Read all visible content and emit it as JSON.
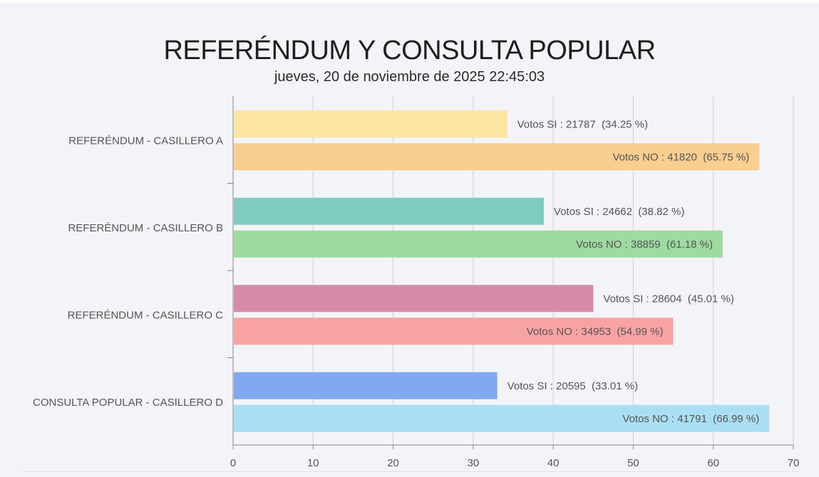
{
  "title": "REFERÉNDUM Y CONSULTA POPULAR",
  "subtitle": "jueves, 20 de noviembre de 2025 22:45:03",
  "chart_data": {
    "type": "bar",
    "orientation": "horizontal",
    "title": "REFERÉNDUM Y CONSULTA POPULAR",
    "subtitle": "jueves, 20 de noviembre de 2025 22:45:03",
    "xlim": [
      0,
      70
    ],
    "xticks": [
      0,
      10,
      20,
      30,
      40,
      50,
      60,
      70
    ],
    "grid": true,
    "categories": [
      "REFERÉNDUM - CASILLERO A",
      "REFERÉNDUM - CASILLERO B",
      "REFERÉNDUM - CASILLERO C",
      "CONSULTA POPULAR - CASILLERO D"
    ],
    "bars": [
      {
        "category": 0,
        "kind": "si",
        "value": 34.25,
        "label": "Votos SI : 21787  (34.25 %)",
        "color": "#fbe6a0"
      },
      {
        "category": 0,
        "kind": "no",
        "value": 65.75,
        "label": "Votos NO : 41820  (65.75 %)",
        "color": "#f9ce90"
      },
      {
        "category": 1,
        "kind": "si",
        "value": 38.82,
        "label": "Votos SI : 24662  (38.82 %)",
        "color": "#7ecbc1"
      },
      {
        "category": 1,
        "kind": "no",
        "value": 61.18,
        "label": "Votos NO : 38859  (61.18 %)",
        "color": "#9ddba1"
      },
      {
        "category": 2,
        "kind": "si",
        "value": 45.01,
        "label": "Votos SI : 28604  (45.01 %)",
        "color": "#d78ba8"
      },
      {
        "category": 2,
        "kind": "no",
        "value": 54.99,
        "label": "Votos NO : 34953  (54.99 %)",
        "color": "#f8a3a3"
      },
      {
        "category": 3,
        "kind": "si",
        "value": 33.01,
        "label": "Votos SI : 20595  (33.01 %)",
        "color": "#82a8f0"
      },
      {
        "category": 3,
        "kind": "no",
        "value": 66.99,
        "label": "Votos NO : 41791  (66.99 %)",
        "color": "#aadff3"
      }
    ]
  },
  "colors": {
    "background": "#f3f4f8",
    "grid": "#cfd0d6",
    "axis": "#888888",
    "label_text": "#555555"
  }
}
